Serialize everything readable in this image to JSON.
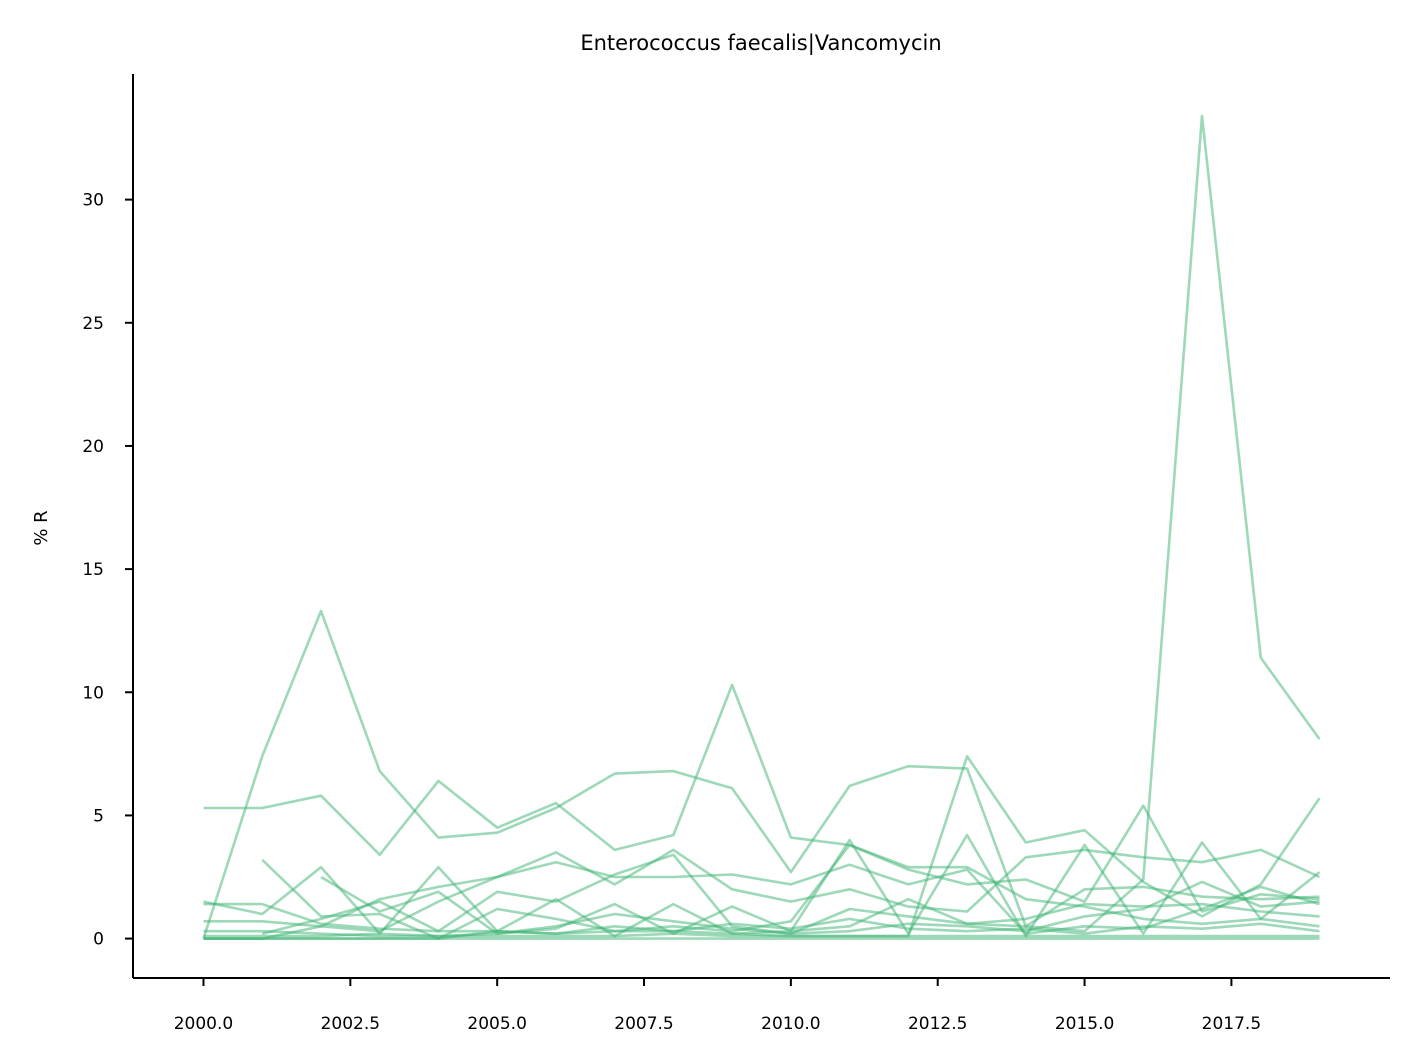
{
  "chart_data": {
    "type": "line",
    "title": "Enterococcus faecalis|Vancomycin",
    "xlabel": "",
    "ylabel": "% R",
    "xlim": [
      1998.8,
      2020.2
    ],
    "ylim": [
      -1.6,
      35.1
    ],
    "x_ticks": [
      2000.0,
      2002.5,
      2005.0,
      2007.5,
      2010.0,
      2012.5,
      2015.0,
      2017.5
    ],
    "x_tick_labels": [
      "2000.0",
      "2002.5",
      "2005.0",
      "2007.5",
      "2010.0",
      "2012.5",
      "2015.0",
      "2017.5"
    ],
    "y_ticks": [
      0,
      5,
      10,
      15,
      20,
      25,
      30
    ],
    "y_tick_labels": [
      "0",
      "5",
      "10",
      "15",
      "20",
      "25",
      "30"
    ],
    "line_color": "#3cb371",
    "line_opacity": 0.5,
    "grid": false,
    "legend": "none",
    "x": [
      2000,
      2001,
      2002,
      2003,
      2004,
      2005,
      2006,
      2007,
      2008,
      2009,
      2010,
      2011,
      2012,
      2013,
      2014,
      2015,
      2016,
      2017,
      2018,
      2019
    ],
    "series": [
      {
        "values": [
          0,
          7.4,
          13.3,
          6.8,
          4.1,
          4.3,
          5.3,
          6.7,
          6.8,
          6.1,
          2.7,
          6.2,
          7.0,
          6.9,
          0.5,
          0.3,
          2.4,
          33.4,
          11.4,
          8.1
        ]
      },
      {
        "values": [
          5.3,
          5.3,
          5.8,
          3.4,
          6.4,
          4.5,
          5.5,
          3.6,
          4.2,
          10.3,
          4.1,
          3.8,
          2.9,
          2.9,
          1.6,
          1.3,
          0.8,
          0.6,
          0.8,
          0.5
        ]
      },
      {
        "values": [
          1.4,
          1.4,
          0.6,
          0.4,
          0.3,
          0.3,
          0.2,
          0.3,
          0.3,
          0.2,
          0.1,
          0.1,
          0.1,
          7.4,
          3.9,
          4.4,
          2.3,
          0.9,
          2.2,
          5.7
        ]
      },
      {
        "values": [
          null,
          3.2,
          0.9,
          1.0,
          0.0,
          1.2,
          0.8,
          0.3,
          0.5,
          0.3,
          0.7,
          3.8,
          2.8,
          2.2,
          2.4,
          1.5,
          5.4,
          1.1,
          1.8,
          1.6
        ]
      },
      {
        "values": [
          1.5,
          1.0,
          2.9,
          0.2,
          2.9,
          0.3,
          1.6,
          0.1,
          1.4,
          0.2,
          0.3,
          4.0,
          0.2,
          4.2,
          0.1,
          3.8,
          0.2,
          3.9,
          0.8,
          2.7
        ]
      },
      {
        "values": [
          0.7,
          0.7,
          0.5,
          1.6,
          2.1,
          2.5,
          3.5,
          2.2,
          3.6,
          2.0,
          1.5,
          2.0,
          1.3,
          1.1,
          3.3,
          3.6,
          3.3,
          3.1,
          3.6,
          2.5
        ]
      },
      {
        "values": [
          null,
          0.2,
          0.8,
          1.5,
          0.3,
          1.9,
          1.5,
          2.6,
          3.4,
          0.5,
          0.2,
          0.3,
          0.6,
          0.5,
          0.3,
          0.9,
          1.2,
          2.3,
          1.3,
          1.5
        ]
      },
      {
        "values": [
          0,
          0,
          0.5,
          0.3,
          1.5,
          2.5,
          3.1,
          2.5,
          2.5,
          2.6,
          2.2,
          3.0,
          2.2,
          2.8,
          0.2,
          0.5,
          0.4,
          1.2,
          2.1,
          1.4
        ]
      },
      {
        "values": [
          null,
          null,
          2.5,
          1.1,
          1.9,
          0.2,
          0.4,
          1.4,
          0.2,
          1.3,
          0.3,
          0.5,
          1.6,
          0.6,
          0.5,
          2.0,
          2.1,
          1.7,
          1.6,
          1.7
        ]
      },
      {
        "values": [
          0.3,
          0.3,
          0.2,
          0.1,
          0.1,
          0.2,
          0.5,
          1.0,
          0.7,
          0.4,
          0.2,
          1.2,
          0.9,
          0.6,
          0.8,
          1.4,
          1.3,
          1.4,
          1.1,
          0.9
        ]
      },
      {
        "values": [
          0,
          0,
          0,
          0,
          0,
          0.3,
          0.2,
          0.5,
          0.3,
          0.6,
          0.4,
          0.8,
          0.4,
          0.3,
          0.4,
          0.2,
          0.5,
          0.4,
          0.6,
          0.3
        ]
      },
      {
        "values": [
          0.1,
          0.1,
          0.1,
          0.2,
          0.1,
          0.1,
          0.1,
          0.1,
          0.2,
          0.1,
          0.1,
          0.1,
          0.1,
          0.1,
          0.1,
          0.1,
          0.1,
          0.1,
          0.1,
          0.1
        ]
      },
      {
        "values": [
          0,
          0,
          0,
          0,
          0,
          0,
          0,
          0,
          0,
          0,
          0,
          0,
          0,
          0,
          0,
          0,
          0,
          0,
          0,
          0
        ]
      }
    ]
  }
}
